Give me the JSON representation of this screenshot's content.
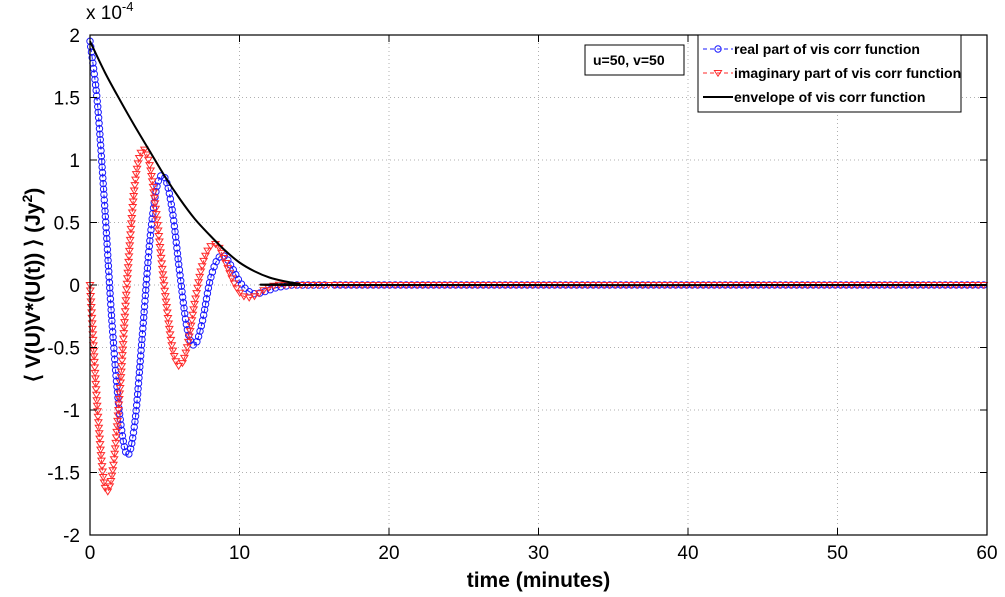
{
  "chart_data": {
    "type": "line",
    "xlabel": "time (minutes)",
    "ylabel_parts": [
      "⟨ V(U)V*(U(t)) ⟩ (Jy",
      "2",
      ")"
    ],
    "y_scale_base": "x 10",
    "y_scale_exp": "-4",
    "xlim": [
      0,
      60
    ],
    "ylim": [
      -2,
      2
    ],
    "x_ticks": [
      0,
      10,
      20,
      30,
      40,
      50,
      60
    ],
    "x_tick_labels": [
      "0",
      "10",
      "20",
      "30",
      "40",
      "50",
      "60"
    ],
    "y_ticks": [
      -2,
      -1.5,
      -1,
      -0.5,
      0,
      0.5,
      1,
      1.5,
      2
    ],
    "y_tick_labels": [
      "-2",
      "-1.5",
      "-1",
      "-0.5",
      "0",
      "0.5",
      "1",
      "1.5",
      "2"
    ],
    "grid": true,
    "legend_position": "top-right",
    "annotation": "u=50, v=50",
    "series": [
      {
        "name": "real part of vis corr function",
        "color": "#1a1aff",
        "marker": "circle",
        "linestyle": "dashed",
        "x": [
          0,
          0.5,
          1,
          1.5,
          2,
          2.5,
          3,
          3.5,
          4,
          4.5,
          5,
          5.5,
          6,
          6.5,
          7,
          7.5,
          8,
          8.5,
          9,
          9.5,
          10,
          10.5,
          11,
          11.5,
          12,
          12.5,
          13,
          13.5,
          14,
          14.5,
          15,
          15.5,
          16
        ],
        "y": [
          1.95,
          1.45,
          0.6,
          -0.35,
          -1.05,
          -1.36,
          -1.1,
          -0.4,
          0.35,
          0.8,
          0.86,
          0.6,
          0.1,
          -0.35,
          -0.48,
          -0.3,
          0.02,
          0.2,
          0.23,
          0.14,
          0.03,
          -0.04,
          -0.07,
          -0.06,
          -0.04,
          -0.02,
          -0.01,
          0,
          0,
          0,
          0,
          0,
          0
        ]
      },
      {
        "name": "imaginary part of vis corr function",
        "color": "#ff2a2a",
        "marker": "triangle-down",
        "linestyle": "dashed",
        "x": [
          0,
          0.5,
          1,
          1.5,
          2,
          2.5,
          3,
          3.5,
          4,
          4.5,
          5,
          5.5,
          6,
          6.5,
          7,
          7.5,
          8,
          8.5,
          9,
          9.5,
          10,
          10.5,
          11,
          11.5,
          12,
          12.5,
          13,
          13.5,
          14,
          14.5,
          15,
          15.5,
          16
        ],
        "y": [
          0,
          -1.0,
          -1.62,
          -1.5,
          -0.85,
          0.05,
          0.8,
          1.08,
          0.95,
          0.5,
          -0.05,
          -0.5,
          -0.65,
          -0.5,
          -0.15,
          0.15,
          0.3,
          0.32,
          0.2,
          0.05,
          -0.06,
          -0.1,
          -0.09,
          -0.05,
          -0.02,
          0,
          0,
          0,
          0,
          0,
          0,
          0,
          0
        ]
      },
      {
        "name": "envelope of vis corr function",
        "color": "#000000",
        "marker": "none",
        "linestyle": "solid",
        "x": [
          0,
          1,
          2,
          3,
          4,
          5,
          6,
          7,
          8,
          9,
          10,
          11,
          12,
          13,
          14,
          15,
          60
        ],
        "y": [
          1.95,
          1.7,
          1.48,
          1.27,
          1.07,
          0.87,
          0.69,
          0.53,
          0.4,
          0.28,
          0.18,
          0.11,
          0.06,
          0.03,
          0.01,
          0,
          0
        ]
      }
    ]
  }
}
